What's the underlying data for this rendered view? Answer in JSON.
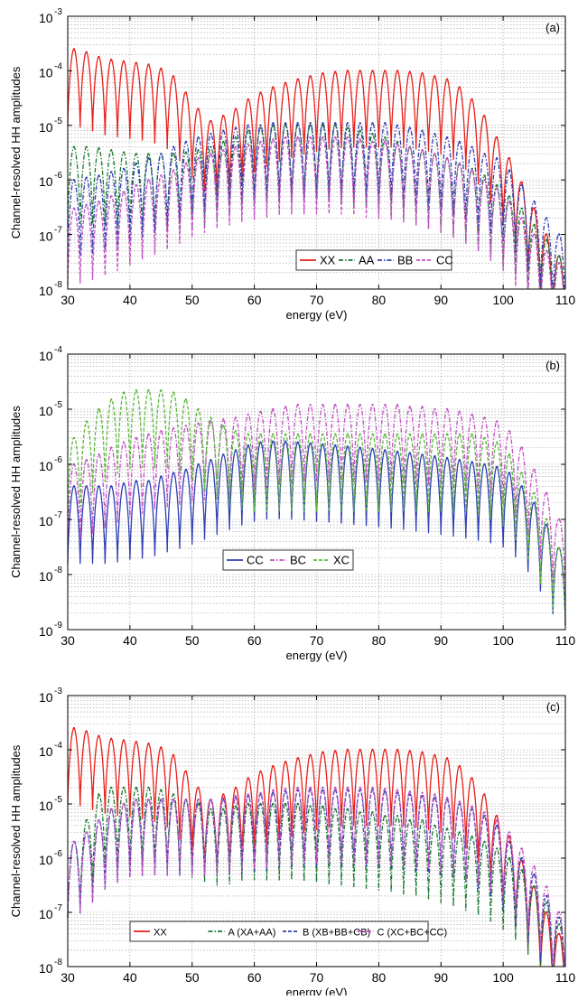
{
  "figure": {
    "panels": [
      {
        "label": "(a)",
        "xlabel": "energy (eV)",
        "ylabel": "Channel-resolved HH amplitudes",
        "x_ticks": [
          "30",
          "40",
          "50",
          "60",
          "70",
          "80",
          "90",
          "100",
          "110"
        ],
        "y_tick_exponents": [
          "-8",
          "-7",
          "-6",
          "-5",
          "-4",
          "-3"
        ],
        "legend": [
          "XX",
          "AA",
          "BB",
          "CC"
        ]
      },
      {
        "label": "(b)",
        "xlabel": "energy (eV)",
        "ylabel": "Channel-resolved HH amplitudes",
        "x_ticks": [
          "30",
          "40",
          "50",
          "60",
          "70",
          "80",
          "90",
          "100",
          "110"
        ],
        "y_tick_exponents": [
          "-9",
          "-8",
          "-7",
          "-6",
          "-5",
          "-4"
        ],
        "legend": [
          "CC",
          "BC",
          "XC"
        ]
      },
      {
        "label": "(c)",
        "xlabel": "energy (eV)",
        "ylabel": "Channel-resolved HH amplitudes",
        "x_ticks": [
          "30",
          "40",
          "50",
          "60",
          "70",
          "80",
          "90",
          "100",
          "110"
        ],
        "y_tick_exponents": [
          "-8",
          "-7",
          "-6",
          "-5",
          "-4",
          "-3"
        ],
        "legend": [
          "XX",
          "A (XA+AA)",
          "B (XB+BB+CB)",
          "C (XC+BC+CC)"
        ]
      }
    ]
  },
  "chart_data": [
    {
      "type": "line",
      "panel_label": "(a)",
      "xlabel": "energy (eV)",
      "ylabel": "Channel-resolved HH amplitudes",
      "xlim": [
        30,
        110
      ],
      "ylim": [
        1e-08,
        0.001
      ],
      "y_scale": "log",
      "grid": true,
      "legend_position": "bottom-right",
      "series_style": [
        {
          "name": "XX",
          "color": "#e8201a",
          "dash": "solid"
        },
        {
          "name": "AA",
          "color": "#1a7a2e",
          "dash": "dash-dot"
        },
        {
          "name": "BB",
          "color": "#2f3fb5",
          "dash": "dash-dot"
        },
        {
          "name": "CC",
          "color": "#c24fc2",
          "dash": "dashed"
        }
      ],
      "x": [
        31,
        33,
        35,
        37,
        39,
        41,
        43,
        45,
        47,
        49,
        51,
        53,
        55,
        57,
        59,
        61,
        63,
        65,
        67,
        69,
        71,
        73,
        75,
        77,
        79,
        81,
        83,
        85,
        87,
        89,
        91,
        93,
        95,
        97,
        99,
        101,
        103,
        105,
        107,
        109
      ],
      "series": [
        {
          "name": "XX",
          "values": [
            0.00025,
            0.00022,
            0.00018,
            0.00016,
            0.00015,
            0.00014,
            0.00013,
            0.00011,
            8e-05,
            4e-05,
            2e-05,
            1.2e-05,
            1.5e-05,
            2e-05,
            3e-05,
            4e-05,
            5e-05,
            6e-05,
            7e-05,
            8e-05,
            9e-05,
            9.5e-05,
            0.0001,
            0.0001,
            0.0001,
            0.0001,
            0.0001,
            9.5e-05,
            9e-05,
            8e-05,
            7e-05,
            5e-05,
            3e-05,
            1.5e-05,
            6e-06,
            2.5e-06,
            9e-07,
            3e-07,
            1e-07,
            4e-08
          ]
        },
        {
          "name": "AA",
          "values": [
            4e-06,
            4e-06,
            3.8e-06,
            3.5e-06,
            3.2e-06,
            3e-06,
            3e-06,
            3e-06,
            3e-06,
            3.2e-06,
            3.5e-06,
            4e-06,
            5e-06,
            6e-06,
            8e-06,
            9e-06,
            1e-05,
            1e-05,
            1e-05,
            1e-05,
            1e-05,
            1e-05,
            9e-06,
            8e-06,
            7e-06,
            6e-06,
            5e-06,
            4e-06,
            3.5e-06,
            3e-06,
            2.5e-06,
            2e-06,
            1.6e-06,
            1.2e-06,
            8e-07,
            5e-07,
            3e-07,
            1.5e-07,
            8e-08,
            4e-08
          ]
        },
        {
          "name": "BB",
          "values": [
            1e-06,
            1.1e-06,
            1.2e-06,
            1.4e-06,
            1.6e-06,
            2e-06,
            2.5e-06,
            3e-06,
            4e-06,
            5e-06,
            6e-06,
            7e-06,
            8e-06,
            9e-06,
            1e-05,
            1e-05,
            1.1e-05,
            1.1e-05,
            1.1e-05,
            1.1e-05,
            1.1e-05,
            1.1e-05,
            1.1e-05,
            1.1e-05,
            1.1e-05,
            1.1e-05,
            1e-05,
            9e-06,
            8e-06,
            7e-06,
            6e-06,
            5e-06,
            4e-06,
            3e-06,
            2.5e-06,
            1.5e-06,
            8e-07,
            4e-07,
            2e-07,
            1e-07
          ]
        },
        {
          "name": "CC",
          "values": [
            3e-07,
            3.5e-07,
            4e-07,
            5e-07,
            6e-07,
            8e-07,
            1e-06,
            1.2e-06,
            1.5e-06,
            2e-06,
            2.5e-06,
            3e-06,
            3.5e-06,
            4e-06,
            4.5e-06,
            5e-06,
            5.5e-06,
            6e-06,
            6e-06,
            6e-06,
            6e-06,
            6e-06,
            6e-06,
            5.5e-06,
            5e-06,
            5e-06,
            4.5e-06,
            4e-06,
            3.5e-06,
            3e-06,
            2.5e-06,
            2e-06,
            1.5e-06,
            1e-06,
            7e-07,
            4e-07,
            2e-07,
            1e-07,
            5e-08,
            3e-08
          ]
        }
      ]
    },
    {
      "type": "line",
      "panel_label": "(b)",
      "xlabel": "energy (eV)",
      "ylabel": "Channel-resolved HH amplitudes",
      "xlim": [
        30,
        110
      ],
      "ylim": [
        1e-09,
        0.0001
      ],
      "y_scale": "log",
      "grid": true,
      "legend_position": "bottom-center",
      "series_style": [
        {
          "name": "CC",
          "color": "#2f3fb5",
          "dash": "solid"
        },
        {
          "name": "BC",
          "color": "#c24fc2",
          "dash": "dash-dot"
        },
        {
          "name": "XC",
          "color": "#5cb83a",
          "dash": "dashed"
        }
      ],
      "x": [
        31,
        33,
        35,
        37,
        39,
        41,
        43,
        45,
        47,
        49,
        51,
        53,
        55,
        57,
        59,
        61,
        63,
        65,
        67,
        69,
        71,
        73,
        75,
        77,
        79,
        81,
        83,
        85,
        87,
        89,
        91,
        93,
        95,
        97,
        99,
        101,
        103,
        105,
        107,
        109
      ],
      "series": [
        {
          "name": "CC",
          "values": [
            4e-07,
            4e-07,
            4e-07,
            4e-07,
            4.5e-07,
            5e-07,
            5e-07,
            6e-07,
            7e-07,
            8e-07,
            1e-06,
            1.2e-06,
            1.5e-06,
            1.8e-06,
            2.2e-06,
            2.5e-06,
            2.6e-06,
            2.6e-06,
            2.5e-06,
            2.4e-06,
            2.3e-06,
            2.2e-06,
            2.1e-06,
            2e-06,
            1.9e-06,
            1.8e-06,
            1.7e-06,
            1.6e-06,
            1.5e-06,
            1.4e-06,
            1.3e-06,
            1.2e-06,
            1.1e-06,
            1e-06,
            9e-07,
            7e-07,
            4e-07,
            2e-07,
            8e-08,
            3e-08
          ]
        },
        {
          "name": "BC",
          "values": [
            1e-06,
            1.2e-06,
            1.5e-06,
            2e-06,
            2.5e-06,
            3e-06,
            3.5e-06,
            4e-06,
            4.5e-06,
            5e-06,
            5.5e-06,
            6e-06,
            6.5e-06,
            7e-06,
            8e-06,
            9e-06,
            1e-05,
            1.1e-05,
            1.2e-05,
            1.2e-05,
            1.2e-05,
            1.2e-05,
            1.2e-05,
            1.2e-05,
            1.2e-05,
            1.2e-05,
            1.2e-05,
            1.1e-05,
            1.1e-05,
            1e-05,
            1e-05,
            9e-06,
            8e-06,
            7e-06,
            6e-06,
            4e-06,
            2e-06,
            8e-07,
            3e-07,
            1e-07
          ]
        },
        {
          "name": "XC",
          "values": [
            3e-06,
            6e-06,
            1e-05,
            1.5e-05,
            2e-05,
            2.2e-05,
            2.2e-05,
            2.2e-05,
            2e-05,
            1.5e-05,
            1e-05,
            7e-06,
            5e-06,
            4e-06,
            3.5e-06,
            3.5e-06,
            3.5e-06,
            3.5e-06,
            3.5e-06,
            3.5e-06,
            3.5e-06,
            3.5e-06,
            3.5e-06,
            3.5e-06,
            3.5e-06,
            3.5e-06,
            3.5e-06,
            3.5e-06,
            3.5e-06,
            3.5e-06,
            3.5e-06,
            3.5e-06,
            3.5e-06,
            3e-06,
            2.5e-06,
            1.5e-06,
            7e-07,
            3e-07,
            1e-07,
            3e-08
          ]
        }
      ]
    },
    {
      "type": "line",
      "panel_label": "(c)",
      "xlabel": "energy (eV)",
      "ylabel": "Channel-resolved HH amplitudes",
      "xlim": [
        30,
        110
      ],
      "ylim": [
        1e-08,
        0.001
      ],
      "y_scale": "log",
      "grid": true,
      "legend_position": "bottom-center",
      "series_style": [
        {
          "name": "XX",
          "color": "#e8201a",
          "dash": "solid"
        },
        {
          "name": "A (XA+AA)",
          "color": "#1a7a2e",
          "dash": "dash-dot"
        },
        {
          "name": "B (XB+BB+CB)",
          "color": "#2f3fb5",
          "dash": "dashed"
        },
        {
          "name": "C (XC+BC+CC)",
          "color": "#c24fc2",
          "dash": "dash-dot"
        }
      ],
      "x": [
        31,
        33,
        35,
        37,
        39,
        41,
        43,
        45,
        47,
        49,
        51,
        53,
        55,
        57,
        59,
        61,
        63,
        65,
        67,
        69,
        71,
        73,
        75,
        77,
        79,
        81,
        83,
        85,
        87,
        89,
        91,
        93,
        95,
        97,
        99,
        101,
        103,
        105,
        107,
        109
      ],
      "series": [
        {
          "name": "XX",
          "values": [
            0.00025,
            0.00022,
            0.00018,
            0.00016,
            0.00015,
            0.00014,
            0.00013,
            0.00011,
            8e-05,
            4e-05,
            2e-05,
            1.2e-05,
            1.5e-05,
            2e-05,
            3e-05,
            4e-05,
            5e-05,
            6e-05,
            7e-05,
            8e-05,
            9e-05,
            9.5e-05,
            0.0001,
            0.0001,
            0.0001,
            0.0001,
            0.0001,
            9.5e-05,
            9e-05,
            8e-05,
            7e-05,
            5e-05,
            3e-05,
            1.5e-05,
            6e-06,
            2.5e-06,
            9e-07,
            3e-07,
            1e-07,
            4e-08
          ]
        },
        {
          "name": "A (XA+AA)",
          "values": [
            2e-06,
            5e-06,
            1.5e-05,
            2e-05,
            2e-05,
            2e-05,
            2e-05,
            1.8e-05,
            1.5e-05,
            1.2e-05,
            1e-05,
            8e-06,
            8e-06,
            9e-06,
            1e-05,
            1e-05,
            1e-05,
            1e-05,
            1e-05,
            9e-06,
            9e-06,
            8e-06,
            8e-06,
            7e-06,
            7e-06,
            6e-06,
            6e-06,
            5e-06,
            5e-06,
            4e-06,
            3.5e-06,
            3e-06,
            2.5e-06,
            2e-06,
            1.5e-06,
            1e-06,
            6e-07,
            3e-07,
            1.5e-07,
            6e-08
          ]
        },
        {
          "name": "B (XB+BB+CB)",
          "values": [
            2e-06,
            3e-06,
            5e-06,
            8e-06,
            1e-05,
            1.2e-05,
            1.2e-05,
            1.2e-05,
            1.2e-05,
            1.2e-05,
            1.2e-05,
            1.2e-05,
            1.2e-05,
            1.3e-05,
            1.4e-05,
            1.5e-05,
            1.6e-05,
            1.7e-05,
            1.8e-05,
            1.8e-05,
            1.8e-05,
            1.8e-05,
            1.8e-05,
            1.8e-05,
            1.8e-05,
            1.7e-05,
            1.6e-05,
            1.5e-05,
            1.4e-05,
            1.3e-05,
            1.2e-05,
            1e-05,
            8e-06,
            6e-06,
            4e-06,
            2e-06,
            1e-06,
            5e-07,
            2e-07,
            8e-08
          ]
        },
        {
          "name": "C (XC+BC+CC)",
          "values": [
            2e-06,
            3e-06,
            5e-06,
            8e-06,
            1e-05,
            1.2e-05,
            1.2e-05,
            1.2e-05,
            1.2e-05,
            1.2e-05,
            1.2e-05,
            1.2e-05,
            1.3e-05,
            1.4e-05,
            1.5e-05,
            1.6e-05,
            1.8e-05,
            1.9e-05,
            2e-05,
            2e-05,
            2e-05,
            2e-05,
            2e-05,
            2e-05,
            2e-05,
            1.9e-05,
            1.8e-05,
            1.7e-05,
            1.6e-05,
            1.5e-05,
            1.3e-05,
            1.1e-05,
            9e-06,
            7e-06,
            5e-06,
            3e-06,
            1.5e-06,
            7e-07,
            3e-07,
            1e-07
          ]
        }
      ]
    }
  ]
}
